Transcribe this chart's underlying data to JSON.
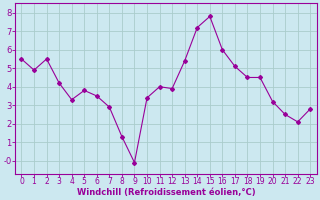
{
  "x": [
    0,
    1,
    2,
    3,
    4,
    5,
    6,
    7,
    8,
    9,
    10,
    11,
    12,
    13,
    14,
    15,
    16,
    17,
    18,
    19,
    20,
    21,
    22,
    23
  ],
  "y": [
    5.5,
    4.9,
    5.5,
    4.2,
    3.3,
    3.8,
    3.5,
    2.9,
    1.3,
    -0.1,
    3.4,
    4.0,
    3.9,
    5.4,
    7.2,
    7.8,
    6.0,
    5.1,
    4.5,
    4.5,
    3.2,
    2.5,
    2.1,
    2.8
  ],
  "line_color": "#990099",
  "marker": "D",
  "marker_size": 2,
  "bg_color": "#cce8f0",
  "grid_color": "#aacccc",
  "xlabel": "Windchill (Refroidissement éolien,°C)",
  "xlabel_color": "#990099",
  "tick_color": "#990099",
  "spine_color": "#990099",
  "ylabel_ticks": [
    0,
    1,
    2,
    3,
    4,
    5,
    6,
    7,
    8
  ],
  "ylabel_labels": [
    "-0",
    "1",
    "2",
    "3",
    "4",
    "5",
    "6",
    "7",
    "8"
  ],
  "xlim": [
    -0.5,
    23.5
  ],
  "ylim": [
    -0.7,
    8.5
  ],
  "figsize": [
    3.2,
    2.0
  ],
  "dpi": 100,
  "tick_fontsize": 5.5,
  "xlabel_fontsize": 6.0
}
